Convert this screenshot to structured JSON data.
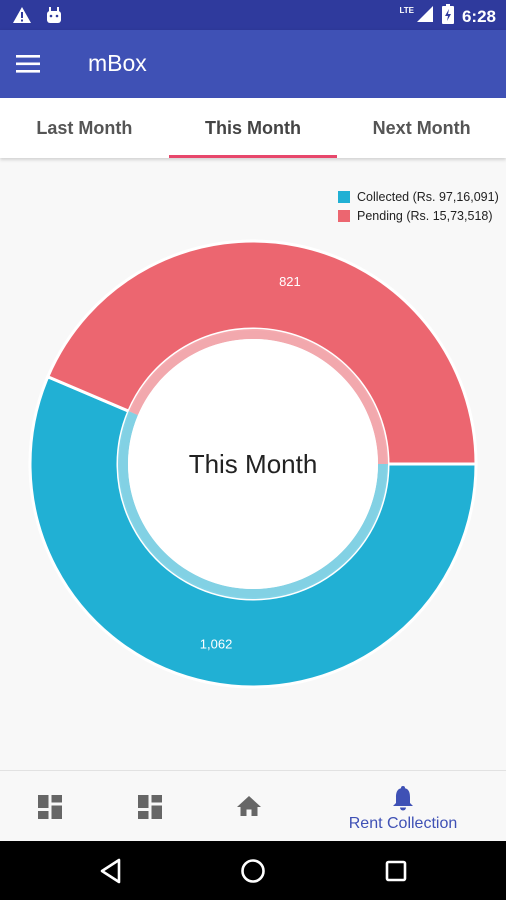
{
  "status_bar": {
    "time": "6:28",
    "network": "LTE",
    "icons": [
      "warning-icon",
      "android-debug-icon",
      "signal-icon",
      "battery-charging-icon"
    ]
  },
  "app_bar": {
    "title": "mBox",
    "menu_icon": "hamburger-menu-icon"
  },
  "tabs": [
    {
      "label": "Last Month",
      "active": false
    },
    {
      "label": "This Month",
      "active": true
    },
    {
      "label": "Next Month",
      "active": false
    }
  ],
  "chart_data": {
    "type": "pie",
    "variant": "donut",
    "center_text": "This Month",
    "legend_position": "top-right",
    "legend": [
      {
        "label": "Collected (Rs. 97,16,091)",
        "color": "#21b0d4"
      },
      {
        "label": "Pending (Rs. 15,73,518)",
        "color": "#ec6670"
      }
    ],
    "slices": [
      {
        "label": "1,062",
        "value": 1062,
        "color": "#21b0d4"
      },
      {
        "label": "821",
        "value": 821,
        "color": "#ec6670"
      }
    ]
  },
  "bottom_nav": {
    "items": [
      {
        "icon": "dashboard-icon",
        "label": ""
      },
      {
        "icon": "dashboard-icon",
        "label": ""
      },
      {
        "icon": "home-icon",
        "label": ""
      },
      {
        "icon": "bell-icon",
        "label": "Rent Collection"
      }
    ]
  },
  "system_nav": [
    "back-icon",
    "home-circle-icon",
    "recents-icon"
  ],
  "colors": {
    "primary": "#3f51b5",
    "primary_dark": "#2f3a9d",
    "accent": "#e7476b"
  }
}
